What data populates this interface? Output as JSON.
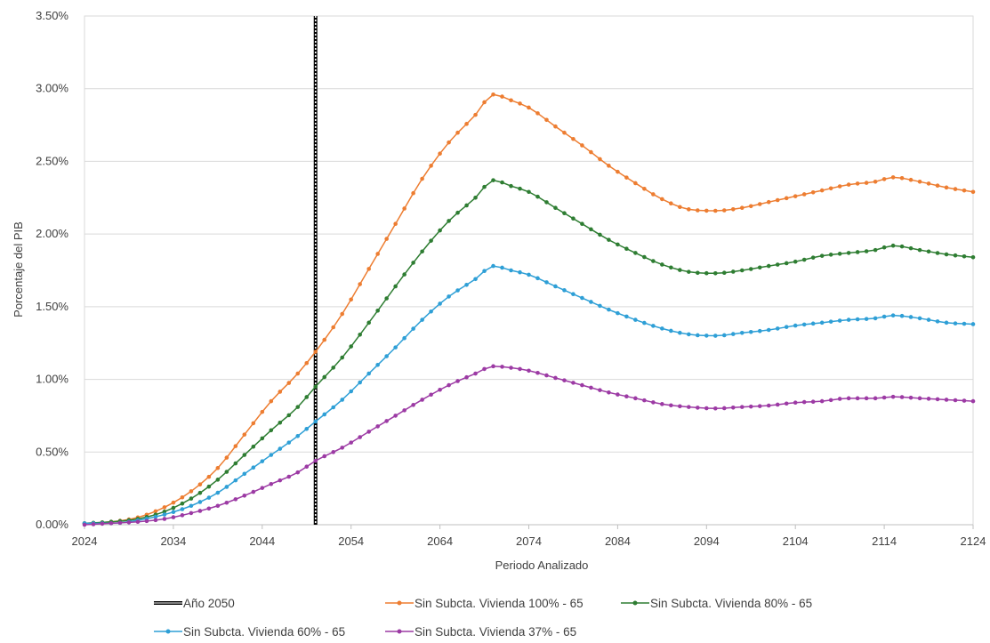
{
  "chart_data": {
    "type": "line",
    "title": "",
    "xlabel": "Periodo Analizado",
    "ylabel": "Porcentaje del PIB",
    "xlim": [
      2024,
      2124
    ],
    "ylim": [
      0,
      0.035
    ],
    "x_ticks": [
      "2024",
      "2034",
      "2044",
      "2054",
      "2064",
      "2074",
      "2084",
      "2094",
      "2104",
      "2114",
      "2124"
    ],
    "y_ticks": [
      "0.00%",
      "0.50%",
      "1.00%",
      "1.50%",
      "2.00%",
      "2.50%",
      "3.00%",
      "3.50%"
    ],
    "grid": "horizontal",
    "legend_position": "bottom",
    "vertical_marker": {
      "name": "Año 2050",
      "x": 2050,
      "color": "#000000"
    },
    "series": [
      {
        "name": "Sin Subcta. Vivienda 100% - 65",
        "color": "#ed7d31",
        "points": [
          [
            2024,
            0.0001
          ],
          [
            2027,
            0.0002
          ],
          [
            2030,
            0.0005
          ],
          [
            2033,
            0.0012
          ],
          [
            2036,
            0.0023
          ],
          [
            2039,
            0.0039
          ],
          [
            2042,
            0.0062
          ],
          [
            2045,
            0.0085
          ],
          [
            2048,
            0.0104
          ],
          [
            2050,
            0.0119
          ],
          [
            2053,
            0.0145
          ],
          [
            2056,
            0.0176
          ],
          [
            2059,
            0.0207
          ],
          [
            2062,
            0.0238
          ],
          [
            2065,
            0.0263
          ],
          [
            2068,
            0.0282
          ],
          [
            2070,
            0.0296
          ],
          [
            2072,
            0.0292
          ],
          [
            2074,
            0.0287
          ],
          [
            2077,
            0.0274
          ],
          [
            2080,
            0.0261
          ],
          [
            2083,
            0.0247
          ],
          [
            2086,
            0.0235
          ],
          [
            2089,
            0.0224
          ],
          [
            2092,
            0.0217
          ],
          [
            2095,
            0.0216
          ],
          [
            2098,
            0.0218
          ],
          [
            2101,
            0.0222
          ],
          [
            2104,
            0.0226
          ],
          [
            2107,
            0.023
          ],
          [
            2110,
            0.0234
          ],
          [
            2113,
            0.0236
          ],
          [
            2115,
            0.0239
          ],
          [
            2118,
            0.0236
          ],
          [
            2121,
            0.0232
          ],
          [
            2124,
            0.0229
          ]
        ]
      },
      {
        "name": "Sin Subcta. Vivienda 80% - 65",
        "color": "#2e7d32",
        "points": [
          [
            2024,
            0.0001
          ],
          [
            2027,
            0.0002
          ],
          [
            2030,
            0.0004
          ],
          [
            2033,
            0.0009
          ],
          [
            2036,
            0.0018
          ],
          [
            2039,
            0.0031
          ],
          [
            2042,
            0.0048
          ],
          [
            2045,
            0.0065
          ],
          [
            2048,
            0.0081
          ],
          [
            2050,
            0.0095
          ],
          [
            2053,
            0.0115
          ],
          [
            2056,
            0.0139
          ],
          [
            2059,
            0.0164
          ],
          [
            2062,
            0.0188
          ],
          [
            2065,
            0.0209
          ],
          [
            2068,
            0.0225
          ],
          [
            2070,
            0.0237
          ],
          [
            2072,
            0.0233
          ],
          [
            2074,
            0.0229
          ],
          [
            2077,
            0.0218
          ],
          [
            2080,
            0.0207
          ],
          [
            2083,
            0.0196
          ],
          [
            2086,
            0.0187
          ],
          [
            2089,
            0.0179
          ],
          [
            2092,
            0.0174
          ],
          [
            2095,
            0.0173
          ],
          [
            2098,
            0.0175
          ],
          [
            2101,
            0.0178
          ],
          [
            2104,
            0.0181
          ],
          [
            2107,
            0.0185
          ],
          [
            2110,
            0.0187
          ],
          [
            2113,
            0.0189
          ],
          [
            2115,
            0.0192
          ],
          [
            2118,
            0.0189
          ],
          [
            2121,
            0.0186
          ],
          [
            2124,
            0.0184
          ]
        ]
      },
      {
        "name": "Sin Subcta. Vivienda 60% - 65",
        "color": "#2e9fd6",
        "points": [
          [
            2024,
            0.0001
          ],
          [
            2027,
            0.0001
          ],
          [
            2030,
            0.0003
          ],
          [
            2033,
            0.0007
          ],
          [
            2036,
            0.0013
          ],
          [
            2039,
            0.0022
          ],
          [
            2042,
            0.0035
          ],
          [
            2045,
            0.0048
          ],
          [
            2048,
            0.0061
          ],
          [
            2050,
            0.0071
          ],
          [
            2053,
            0.0086
          ],
          [
            2056,
            0.0104
          ],
          [
            2059,
            0.0122
          ],
          [
            2062,
            0.0141
          ],
          [
            2065,
            0.0157
          ],
          [
            2068,
            0.0169
          ],
          [
            2070,
            0.0178
          ],
          [
            2072,
            0.0175
          ],
          [
            2074,
            0.0172
          ],
          [
            2077,
            0.0164
          ],
          [
            2080,
            0.0156
          ],
          [
            2083,
            0.0148
          ],
          [
            2086,
            0.0141
          ],
          [
            2089,
            0.0135
          ],
          [
            2092,
            0.0131
          ],
          [
            2095,
            0.013
          ],
          [
            2098,
            0.0132
          ],
          [
            2101,
            0.0134
          ],
          [
            2104,
            0.0137
          ],
          [
            2107,
            0.0139
          ],
          [
            2110,
            0.0141
          ],
          [
            2113,
            0.0142
          ],
          [
            2115,
            0.0144
          ],
          [
            2118,
            0.0142
          ],
          [
            2121,
            0.0139
          ],
          [
            2124,
            0.0138
          ]
        ]
      },
      {
        "name": "Sin Subcta. Vivienda 37% - 65",
        "color": "#9c3aa4",
        "points": [
          [
            2024,
            0.0
          ],
          [
            2027,
            0.0001
          ],
          [
            2030,
            0.0002
          ],
          [
            2033,
            0.0004
          ],
          [
            2036,
            0.0008
          ],
          [
            2039,
            0.0013
          ],
          [
            2042,
            0.002
          ],
          [
            2045,
            0.0028
          ],
          [
            2048,
            0.0036
          ],
          [
            2050,
            0.0044
          ],
          [
            2053,
            0.0053
          ],
          [
            2056,
            0.0064
          ],
          [
            2059,
            0.0075
          ],
          [
            2062,
            0.0086
          ],
          [
            2065,
            0.0096
          ],
          [
            2068,
            0.0104
          ],
          [
            2070,
            0.0109
          ],
          [
            2072,
            0.0108
          ],
          [
            2074,
            0.0106
          ],
          [
            2077,
            0.0101
          ],
          [
            2080,
            0.0096
          ],
          [
            2083,
            0.0091
          ],
          [
            2086,
            0.0087
          ],
          [
            2089,
            0.0083
          ],
          [
            2092,
            0.0081
          ],
          [
            2095,
            0.008
          ],
          [
            2098,
            0.0081
          ],
          [
            2101,
            0.0082
          ],
          [
            2104,
            0.0084
          ],
          [
            2107,
            0.0085
          ],
          [
            2110,
            0.0087
          ],
          [
            2113,
            0.0087
          ],
          [
            2115,
            0.0088
          ],
          [
            2118,
            0.0087
          ],
          [
            2121,
            0.0086
          ],
          [
            2124,
            0.0085
          ]
        ]
      }
    ]
  }
}
